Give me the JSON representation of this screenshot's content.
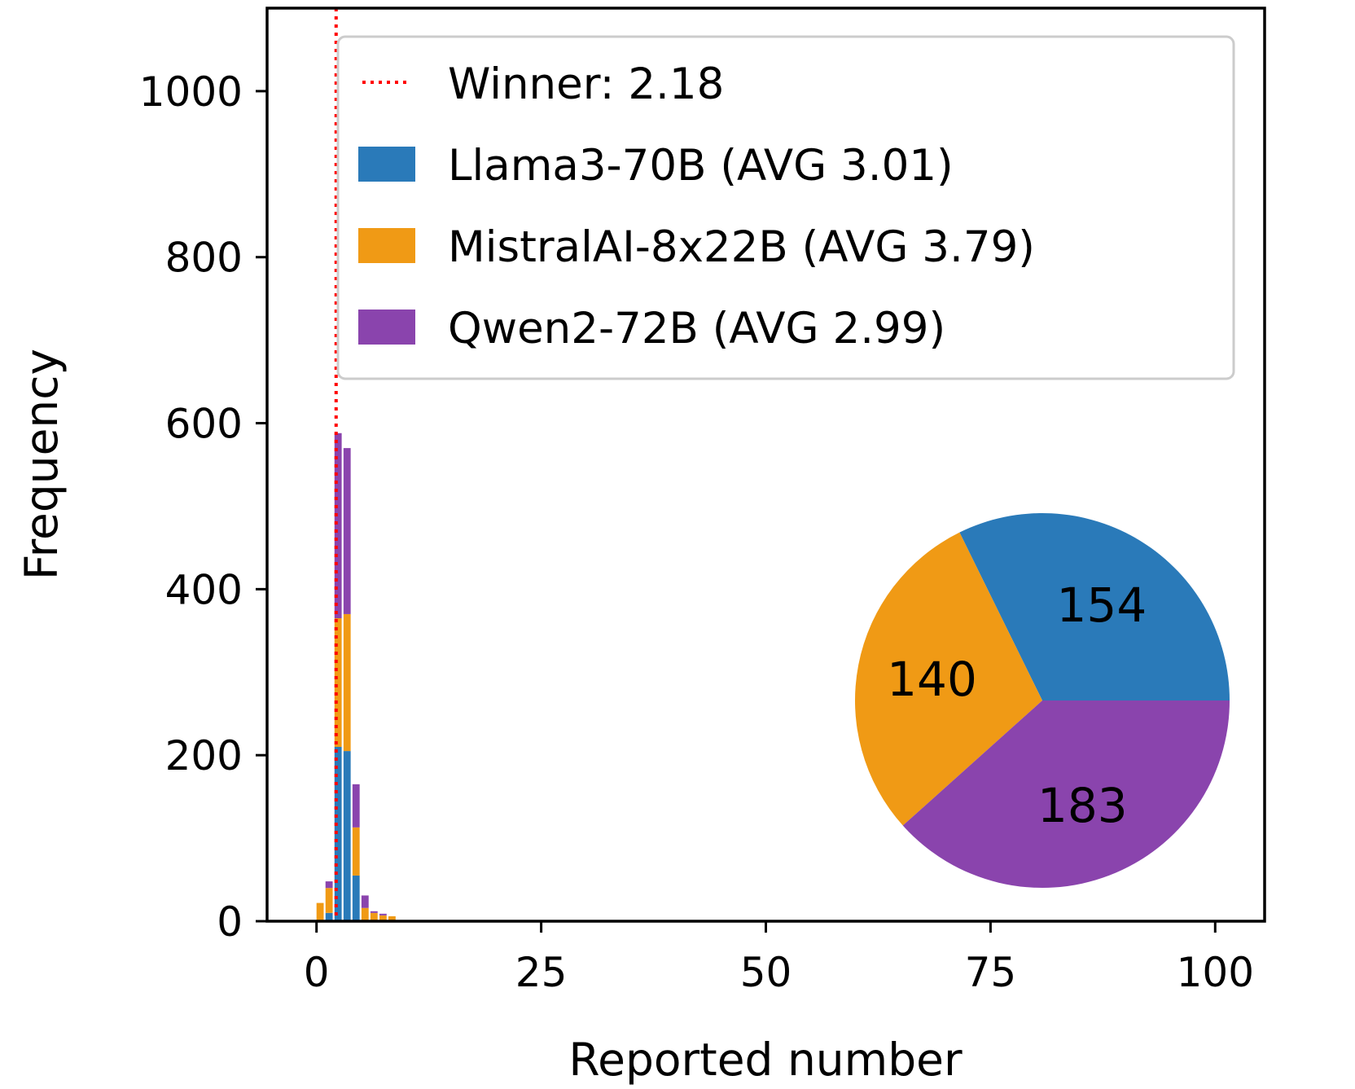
{
  "chart_data": {
    "type": "bar",
    "stacked": true,
    "xlabel": "Reported number",
    "ylabel": "Frequency",
    "xlim": [
      -5.5,
      105.5
    ],
    "ylim": [
      0,
      1100
    ],
    "xticks": [
      0,
      25,
      50,
      75,
      100
    ],
    "yticks": [
      0,
      200,
      400,
      600,
      800,
      1000
    ],
    "bin_width": 0.8,
    "bins": [
      0,
      1,
      2,
      3,
      4,
      5,
      6,
      7,
      8
    ],
    "series": [
      {
        "name": "Llama3-70B (AVG 3.01)",
        "color": "#2a7ab9",
        "values": [
          0,
          10,
          210,
          205,
          55,
          0,
          0,
          0,
          0
        ]
      },
      {
        "name": "MistralAI-8x22B (AVG 3.79)",
        "color": "#f09a15",
        "values": [
          22,
          30,
          155,
          165,
          58,
          16,
          10,
          7,
          6
        ]
      },
      {
        "name": "Qwen2-72B (AVG 2.99)",
        "color": "#8a44ad",
        "values": [
          0,
          8,
          223,
          200,
          52,
          15,
          2,
          2,
          0
        ]
      }
    ],
    "reference_line": {
      "label": "Winner: 2.18",
      "x": 2.18,
      "color": "#ff0000",
      "style": "dotted"
    },
    "legend_position": "top-right",
    "inset_pie": {
      "position": "lower-right",
      "slices": [
        {
          "name": "Llama3-70B",
          "value": 154,
          "label": "154",
          "color": "#2a7ab9"
        },
        {
          "name": "MistralAI-8x22B",
          "value": 140,
          "label": "140",
          "color": "#f09a15"
        },
        {
          "name": "Qwen2-72B",
          "value": 183,
          "label": "183",
          "color": "#8a44ad"
        }
      ]
    }
  }
}
